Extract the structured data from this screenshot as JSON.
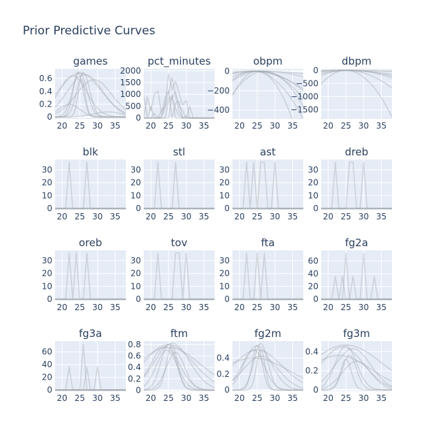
{
  "title": "Prior Predictive Curves",
  "colors": {
    "plot_bg": "#E5ECF6",
    "grid": "#ffffff",
    "curve": "#9aa0a6",
    "text": "#2a3f5f"
  },
  "chart_data": {
    "type": "line",
    "title": "Prior Predictive Curves",
    "grid": true,
    "legend": "none",
    "x_tick_labels": [
      "20",
      "25",
      "30",
      "35"
    ],
    "subplots": [
      {
        "name": "games",
        "xlim": [
          18,
          38
        ],
        "ylim": [
          -0.03,
          0.75
        ],
        "yticks": [
          0,
          0.2,
          0.4,
          0.6
        ],
        "ytick_labels": [
          "0",
          "0.2",
          "0.4",
          "0.6"
        ],
        "series": [
          {
            "type": "gauss",
            "center": 25,
            "width": 6,
            "peak": 0.68
          },
          {
            "type": "gauss",
            "center": 26.5,
            "width": 5,
            "peak": 0.66
          },
          {
            "type": "gauss",
            "center": 23,
            "width": 4,
            "peak": 0.64
          },
          {
            "type": "gauss",
            "center": 29,
            "width": 5,
            "peak": 0.58
          },
          {
            "type": "gauss",
            "center": 25,
            "width": 2,
            "peak": 0.7
          },
          {
            "type": "gauss",
            "center": 24.5,
            "width": 1.4,
            "peak": 0.7
          },
          {
            "type": "gauss",
            "center": 25.5,
            "width": 1.0,
            "peak": 0.6
          },
          {
            "type": "gauss",
            "center": 26,
            "width": 1.8,
            "peak": 0.69
          },
          {
            "type": "gauss",
            "center": 22,
            "width": 3,
            "peak": 0.2
          },
          {
            "type": "gauss",
            "center": 33,
            "width": 4,
            "peak": 0.08
          }
        ]
      },
      {
        "name": "pct_minutes",
        "xlim": [
          18,
          38
        ],
        "ylim": [
          -40,
          2080
        ],
        "yticks": [
          0,
          500,
          1000,
          1500,
          2000
        ],
        "ytick_labels": [
          "0",
          "500",
          "1000",
          "1500",
          "2000"
        ],
        "series": [
          {
            "type": "points",
            "x": [
              18,
              19,
              20,
              21,
              22,
              23,
              24,
              25,
              26,
              27,
              28,
              29,
              30,
              31,
              32,
              33,
              34,
              35,
              36,
              37,
              38
            ],
            "y": [
              0,
              900,
              300,
              1000,
              1150,
              200,
              850,
              1150,
              0,
              650,
              700,
              0,
              100,
              0,
              0,
              0,
              0,
              0,
              0,
              0,
              0
            ]
          },
          {
            "type": "points",
            "x": [
              18,
              19,
              20,
              21,
              22,
              23,
              24,
              25,
              26,
              27,
              28,
              29,
              30,
              31,
              32,
              33,
              34,
              35,
              36,
              37,
              38
            ],
            "y": [
              0,
              0,
              0,
              0,
              0,
              300,
              500,
              1850,
              1200,
              1550,
              1050,
              550,
              750,
              0,
              0,
              0,
              0,
              0,
              0,
              0,
              0
            ]
          },
          {
            "type": "points",
            "x": [
              18,
              19,
              20,
              21,
              22,
              23,
              24,
              25,
              26,
              27,
              28,
              29,
              30,
              31,
              32,
              33,
              34,
              35,
              36,
              37,
              38
            ],
            "y": [
              0,
              0,
              0,
              0,
              0,
              0,
              600,
              1050,
              1700,
              900,
              300,
              0,
              0,
              0,
              0,
              0,
              0,
              0,
              0,
              0,
              0
            ]
          },
          {
            "type": "points",
            "x": [
              18,
              19,
              20,
              21,
              22,
              23,
              24,
              25,
              26,
              27,
              28,
              29,
              30,
              31,
              32,
              33,
              34,
              35,
              36,
              37,
              38
            ],
            "y": [
              0,
              0,
              0,
              200,
              0,
              0,
              0,
              700,
              850,
              1100,
              500,
              300,
              0,
              500,
              0,
              0,
              0,
              0,
              0,
              0,
              0
            ]
          },
          {
            "type": "points",
            "x": [
              18,
              19,
              20,
              21,
              22,
              23,
              24,
              25,
              26,
              27,
              28,
              29,
              30,
              31,
              32,
              33,
              34,
              35,
              36,
              37,
              38
            ],
            "y": [
              1000,
              0,
              500,
              0,
              0,
              0,
              0,
              0,
              1000,
              0,
              0,
              0,
              0,
              0,
              0,
              0,
              0,
              0,
              0,
              0,
              0
            ]
          },
          {
            "type": "gauss",
            "center": 25.5,
            "width": 1.2,
            "peak": 900
          }
        ]
      },
      {
        "name": "obpm",
        "xlim": [
          18,
          38
        ],
        "ylim": [
          -490,
          25
        ],
        "yticks": [
          0,
          -200,
          -400
        ],
        "ytick_labels": [
          "0",
          "−200",
          "−400"
        ],
        "series": [
          {
            "type": "parab",
            "center": 25,
            "k": -5
          },
          {
            "type": "parab",
            "center": 25,
            "k": -1.2
          },
          {
            "type": "parab",
            "center": 26,
            "k": -0.4
          },
          {
            "type": "parab",
            "center": 24,
            "k": -2.5
          },
          {
            "type": "parab",
            "center": 25,
            "k": -0.15
          },
          {
            "type": "parab",
            "center": 27,
            "k": -3
          },
          {
            "type": "parab",
            "center": 25.5,
            "k": -1.8
          },
          {
            "type": "parab",
            "center": 23,
            "k": -0.8
          }
        ]
      },
      {
        "name": "dbpm",
        "xlim": [
          18,
          38
        ],
        "ylim": [
          -1850,
          60
        ],
        "yticks": [
          0,
          -500,
          -1000,
          -1500
        ],
        "ytick_labels": [
          "0",
          "−500",
          "−1000",
          "−1500"
        ],
        "series": [
          {
            "type": "parab",
            "center": 25,
            "k": -10.5
          },
          {
            "type": "parab",
            "center": 25,
            "k": -4
          },
          {
            "type": "parab",
            "center": 26,
            "k": -2
          },
          {
            "type": "parab",
            "center": 24,
            "k": -0.8
          },
          {
            "type": "parab",
            "center": 25,
            "k": -0.3
          },
          {
            "type": "parab",
            "center": 27,
            "k": -0.1
          },
          {
            "type": "parab",
            "center": 25,
            "k": -1.3
          }
        ]
      },
      {
        "name": "blk",
        "xlim": [
          18,
          38
        ],
        "ylim": [
          -1,
          38
        ],
        "yticks": [
          0,
          10,
          20,
          30
        ],
        "ytick_labels": [
          "0",
          "10",
          "20",
          "30"
        ],
        "series": [
          {
            "type": "spikes",
            "centers": [
              22,
              27
            ],
            "height": 36
          },
          {
            "type": "flat",
            "y": 0
          }
        ]
      },
      {
        "name": "stl",
        "xlim": [
          18,
          38
        ],
        "ylim": [
          -1,
          38
        ],
        "yticks": [
          0,
          10,
          20,
          30
        ],
        "ytick_labels": [
          "0",
          "10",
          "20",
          "30"
        ],
        "series": [
          {
            "type": "spikes",
            "centers": [
              22,
              27
            ],
            "height": 36
          },
          {
            "type": "flat",
            "y": 0
          }
        ]
      },
      {
        "name": "ast",
        "xlim": [
          18,
          38
        ],
        "ylim": [
          -1,
          38
        ],
        "yticks": [
          0,
          10,
          20,
          30
        ],
        "ytick_labels": [
          "0",
          "10",
          "20",
          "30"
        ],
        "series": [
          {
            "type": "spikes",
            "centers": [
              22,
              24,
              26,
              27,
              30
            ],
            "height": 36
          },
          {
            "type": "flat",
            "y": 0
          }
        ]
      },
      {
        "name": "dreb",
        "xlim": [
          18,
          38
        ],
        "ylim": [
          -1,
          38
        ],
        "yticks": [
          0,
          10,
          20,
          30
        ],
        "ytick_labels": [
          "0",
          "10",
          "20",
          "30"
        ],
        "series": [
          {
            "type": "spikes",
            "centers": [
              22,
              26,
              27,
              30
            ],
            "height": 36
          },
          {
            "type": "flat",
            "y": 0
          }
        ]
      },
      {
        "name": "oreb",
        "xlim": [
          18,
          38
        ],
        "ylim": [
          -1,
          38
        ],
        "yticks": [
          0,
          10,
          20,
          30
        ],
        "ytick_labels": [
          "0",
          "10",
          "20",
          "30"
        ],
        "series": [
          {
            "type": "spikes",
            "centers": [
              22,
              24,
              27
            ],
            "height": 36
          },
          {
            "type": "flat",
            "y": 0
          }
        ]
      },
      {
        "name": "tov",
        "xlim": [
          18,
          38
        ],
        "ylim": [
          -1,
          38
        ],
        "yticks": [
          0,
          10,
          20,
          30
        ],
        "ytick_labels": [
          "0",
          "10",
          "20",
          "30"
        ],
        "series": [
          {
            "type": "spikes",
            "centers": [
              22,
              27,
              28,
              30
            ],
            "height": 36
          },
          {
            "type": "flat",
            "y": 0
          }
        ]
      },
      {
        "name": "fta",
        "xlim": [
          18,
          38
        ],
        "ylim": [
          -1,
          38
        ],
        "yticks": [
          0,
          10,
          20,
          30
        ],
        "ytick_labels": [
          "0",
          "10",
          "20",
          "30"
        ],
        "series": [
          {
            "type": "spikes",
            "centers": [
              22,
              25,
              27
            ],
            "height": 36
          },
          {
            "type": "flat",
            "y": 0
          }
        ]
      },
      {
        "name": "fg2a",
        "xlim": [
          18,
          38
        ],
        "ylim": [
          -2,
          77
        ],
        "yticks": [
          0,
          20,
          40,
          60
        ],
        "ytick_labels": [
          "0",
          "20",
          "40",
          "60"
        ],
        "series": [
          {
            "type": "spikes",
            "centers": [
              22,
              24,
              27,
              33
            ],
            "height": 36
          },
          {
            "type": "spikes",
            "centers": [
              25,
              30
            ],
            "height": 72
          },
          {
            "type": "flat",
            "y": 0
          }
        ]
      },
      {
        "name": "fg3a",
        "xlim": [
          18,
          38
        ],
        "ylim": [
          -2,
          77
        ],
        "yticks": [
          0,
          20,
          40,
          60
        ],
        "ytick_labels": [
          "0",
          "20",
          "40",
          "60"
        ],
        "series": [
          {
            "type": "spikes",
            "centers": [
              22,
              27,
              30
            ],
            "height": 36
          },
          {
            "type": "spikes",
            "centers": [
              26
            ],
            "height": 72
          },
          {
            "type": "flat",
            "y": 0
          }
        ]
      },
      {
        "name": "ftm",
        "xlim": [
          18,
          38
        ],
        "ylim": [
          -0.02,
          0.86
        ],
        "yticks": [
          0,
          0.2,
          0.4,
          0.6,
          0.8
        ],
        "ytick_labels": [
          "0",
          "0.2",
          "0.4",
          "0.6",
          "0.8"
        ],
        "series": [
          {
            "type": "gauss",
            "center": 25,
            "width": 7,
            "peak": 0.8
          },
          {
            "type": "gauss",
            "center": 26,
            "width": 5,
            "peak": 0.82
          },
          {
            "type": "gauss",
            "center": 24,
            "width": 4,
            "peak": 0.76
          },
          {
            "type": "gauss",
            "center": 25,
            "width": 2.2,
            "peak": 0.8
          },
          {
            "type": "gauss",
            "center": 26,
            "width": 1.6,
            "peak": 0.78
          },
          {
            "type": "gauss",
            "center": 24.5,
            "width": 3,
            "peak": 0.7
          },
          {
            "type": "gauss",
            "center": 25,
            "width": 9,
            "peak": 0.75
          },
          {
            "type": "gauss",
            "center": 27,
            "width": 2.6,
            "peak": 0.66
          }
        ]
      },
      {
        "name": "fg2m",
        "xlim": [
          18,
          38
        ],
        "ylim": [
          -0.015,
          0.61
        ],
        "yticks": [
          0,
          0.2,
          0.4
        ],
        "ytick_labels": [
          "0",
          "0.2",
          "0.4"
        ],
        "series": [
          {
            "type": "gauss",
            "center": 25,
            "width": 7,
            "peak": 0.5
          },
          {
            "type": "gauss",
            "center": 25,
            "width": 4,
            "peak": 0.55
          },
          {
            "type": "gauss",
            "center": 26,
            "width": 2,
            "peak": 0.58
          },
          {
            "type": "gauss",
            "center": 25,
            "width": 1.4,
            "peak": 0.56
          },
          {
            "type": "gauss",
            "center": 24,
            "width": 3,
            "peak": 0.5
          },
          {
            "type": "gauss",
            "center": 26,
            "width": 5,
            "peak": 0.42
          },
          {
            "type": "gauss",
            "center": 24,
            "width": 10,
            "peak": 0.4
          },
          {
            "type": "gauss",
            "center": 26,
            "width": 1.2,
            "peak": 0.5
          }
        ]
      },
      {
        "name": "fg3m",
        "xlim": [
          18,
          38
        ],
        "ylim": [
          -0.015,
          0.51
        ],
        "yticks": [
          0,
          0.2,
          0.4
        ],
        "ytick_labels": [
          "0",
          "0.2",
          "0.4"
        ],
        "series": [
          {
            "type": "gauss",
            "center": 25,
            "width": 10,
            "peak": 0.47
          },
          {
            "type": "gauss",
            "center": 24,
            "width": 6,
            "peak": 0.45
          },
          {
            "type": "gauss",
            "center": 27,
            "width": 5,
            "peak": 0.43
          },
          {
            "type": "gauss",
            "center": 25,
            "width": 3,
            "peak": 0.46
          },
          {
            "type": "gauss",
            "center": 26,
            "width": 2,
            "peak": 0.36
          },
          {
            "type": "gauss",
            "center": 23,
            "width": 9,
            "peak": 0.36
          },
          {
            "type": "gauss",
            "center": 28,
            "width": 4,
            "peak": 0.3
          },
          {
            "type": "gauss",
            "center": 25,
            "width": 1.5,
            "peak": 0.32
          }
        ]
      }
    ]
  }
}
